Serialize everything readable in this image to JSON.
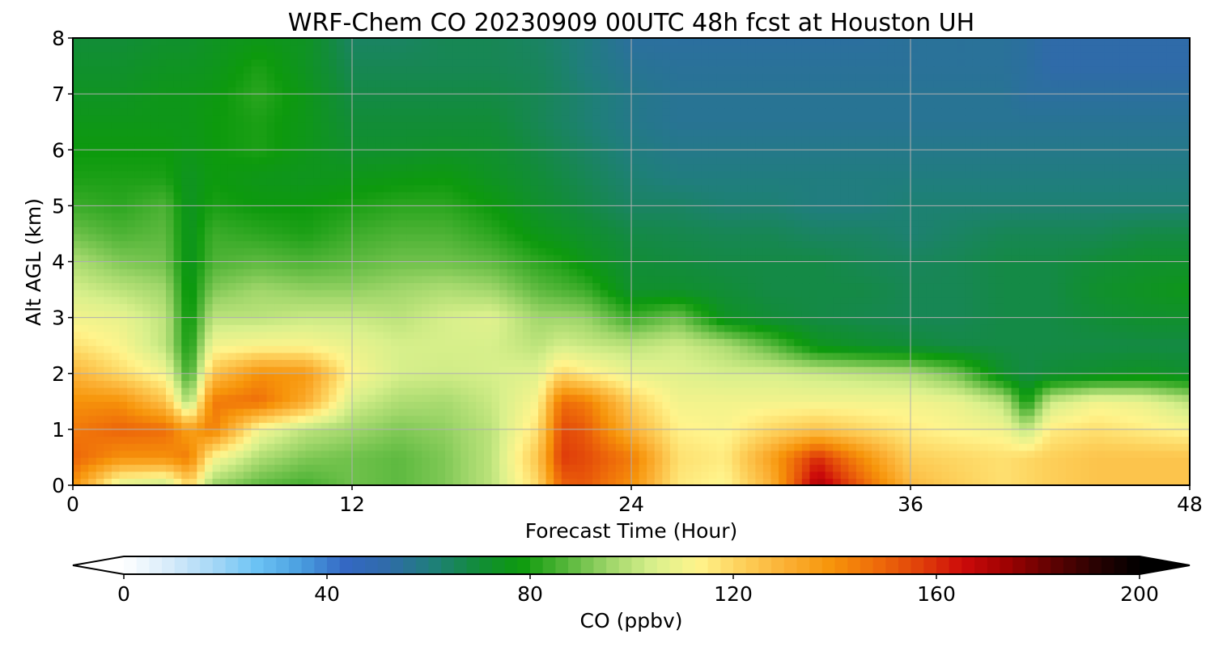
{
  "chart_data": {
    "type": "heatmap",
    "title": "WRF-Chem CO  20230909 00UTC 48h fcst at Houston UH",
    "xlabel": "Forecast Time (Hour)",
    "ylabel": "Alt AGL (km)",
    "xlim": [
      0,
      48
    ],
    "ylim": [
      0,
      8
    ],
    "x_ticks": [
      0,
      12,
      24,
      36,
      48
    ],
    "y_ticks": [
      0,
      1,
      2,
      3,
      4,
      5,
      6,
      7,
      8
    ],
    "grid": true,
    "colorbar": {
      "label": "CO  (ppbv)",
      "range": [
        0,
        200
      ],
      "ticks": [
        0,
        40,
        80,
        120,
        160,
        200
      ],
      "extend": "both",
      "orientation": "horizontal",
      "position": "bottom",
      "colors": [
        "#ffffff",
        "#d8ecfa",
        "#a8d8f6",
        "#6cc3f4",
        "#4a9fe0",
        "#3468c4",
        "#2f6ba8",
        "#1f7f7a",
        "#128c3a",
        "#0d9a0d",
        "#55b63a",
        "#9fd66a",
        "#d9f08c",
        "#fff48c",
        "#fdd05a",
        "#fbb034",
        "#f7950a",
        "#ef6e0a",
        "#e1420a",
        "#cc0a0a",
        "#9e0202",
        "#600202",
        "#2a0202",
        "#000000"
      ]
    },
    "x": [
      0,
      2,
      4,
      5,
      6,
      8,
      10,
      12,
      14,
      16,
      18,
      20,
      21,
      22,
      24,
      26,
      28,
      30,
      32,
      34,
      36,
      38,
      40,
      41,
      42,
      44,
      46,
      48
    ],
    "y": [
      0,
      0.5,
      1,
      1.5,
      2,
      2.5,
      3,
      3.5,
      4,
      4.5,
      5,
      5.5,
      6,
      6.5,
      7,
      7.5,
      8
    ],
    "series": [
      {
        "values": [
          140,
          105,
          100,
          120,
          95,
          88,
          85,
          90,
          88,
          92,
          100,
          120,
          150,
          152,
          140,
          116,
          112,
          130,
          172,
          150,
          128,
          122,
          118,
          120,
          122,
          125,
          125,
          125
        ]
      },
      {
        "values": [
          150,
          140,
          140,
          145,
          112,
          98,
          92,
          90,
          88,
          92,
          100,
          125,
          158,
          155,
          145,
          118,
          115,
          135,
          160,
          140,
          122,
          120,
          118,
          120,
          122,
          125,
          125,
          125
        ]
      },
      {
        "values": [
          145,
          150,
          148,
          135,
          145,
          110,
          100,
          96,
          92,
          94,
          100,
          118,
          155,
          152,
          130,
          114,
          112,
          120,
          125,
          120,
          115,
          112,
          110,
          100,
          115,
          118,
          115,
          112
        ]
      },
      {
        "values": [
          140,
          140,
          125,
          95,
          145,
          148,
          132,
          104,
          98,
          97,
          102,
          112,
          148,
          145,
          122,
          110,
          110,
          110,
          110,
          110,
          110,
          108,
          100,
          78,
          102,
          110,
          108,
          100
        ]
      },
      {
        "values": [
          130,
          120,
          110,
          82,
          125,
          140,
          138,
          112,
          104,
          103,
          104,
          106,
          120,
          115,
          108,
          106,
          104,
          104,
          102,
          100,
          98,
          90,
          72,
          68,
          70,
          72,
          74,
          72
        ]
      },
      {
        "values": [
          118,
          112,
          100,
          78,
          110,
          112,
          112,
          108,
          104,
          104,
          104,
          100,
          104,
          102,
          100,
          103,
          98,
          88,
          75,
          72,
          70,
          68,
          68,
          68,
          68,
          68,
          68,
          68
        ]
      },
      {
        "values": [
          110,
          108,
          100,
          76,
          100,
          100,
          102,
          102,
          100,
          104,
          106,
          96,
          96,
          95,
          84,
          90,
          74,
          70,
          68,
          67,
          66,
          66,
          68,
          68,
          68,
          70,
          72,
          72
        ]
      },
      {
        "values": [
          104,
          100,
          96,
          75,
          92,
          96,
          94,
          94,
          96,
          98,
          96,
          88,
          86,
          84,
          72,
          72,
          70,
          68,
          68,
          68,
          66,
          66,
          68,
          68,
          68,
          72,
          74,
          76
        ]
      },
      {
        "values": [
          98,
          92,
          90,
          74,
          86,
          88,
          86,
          88,
          90,
          90,
          88,
          82,
          80,
          76,
          70,
          69,
          68,
          68,
          68,
          66,
          65,
          66,
          68,
          68,
          68,
          70,
          72,
          72
        ]
      },
      {
        "values": [
          90,
          86,
          88,
          74,
          84,
          82,
          80,
          84,
          86,
          86,
          82,
          76,
          74,
          72,
          68,
          67,
          66,
          66,
          64,
          64,
          62,
          64,
          66,
          66,
          66,
          66,
          68,
          68
        ]
      },
      {
        "values": [
          84,
          82,
          86,
          74,
          80,
          78,
          78,
          80,
          82,
          82,
          78,
          72,
          70,
          68,
          64,
          64,
          62,
          62,
          60,
          60,
          62,
          62,
          62,
          62,
          62,
          62,
          62,
          62
        ]
      },
      {
        "values": [
          80,
          80,
          80,
          74,
          78,
          76,
          75,
          76,
          77,
          78,
          74,
          70,
          68,
          66,
          62,
          60,
          60,
          60,
          60,
          60,
          60,
          60,
          60,
          60,
          60,
          60,
          60,
          60
        ]
      },
      {
        "values": [
          78,
          78,
          78,
          76,
          78,
          80,
          76,
          72,
          72,
          73,
          72,
          68,
          66,
          64,
          60,
          58,
          58,
          58,
          58,
          58,
          58,
          58,
          58,
          58,
          58,
          58,
          58,
          58
        ]
      },
      {
        "values": [
          76,
          76,
          76,
          76,
          78,
          80,
          76,
          70,
          70,
          70,
          70,
          66,
          64,
          62,
          58,
          56,
          56,
          56,
          56,
          56,
          56,
          56,
          56,
          56,
          56,
          56,
          56,
          56
        ]
      },
      {
        "values": [
          74,
          74,
          76,
          76,
          77,
          82,
          76,
          68,
          68,
          68,
          68,
          66,
          64,
          62,
          58,
          56,
          56,
          56,
          56,
          56,
          56,
          56,
          56,
          54,
          54,
          54,
          54,
          54
        ]
      },
      {
        "values": [
          72,
          72,
          74,
          74,
          75,
          80,
          74,
          66,
          66,
          66,
          66,
          65,
          63,
          60,
          56,
          55,
          55,
          55,
          55,
          55,
          55,
          55,
          55,
          54,
          52,
          52,
          52,
          52
        ]
      },
      {
        "values": [
          70,
          70,
          72,
          72,
          74,
          76,
          74,
          64,
          64,
          66,
          66,
          64,
          62,
          60,
          54,
          54,
          54,
          54,
          54,
          54,
          55,
          55,
          55,
          54,
          52,
          52,
          52,
          52
        ]
      }
    ]
  }
}
